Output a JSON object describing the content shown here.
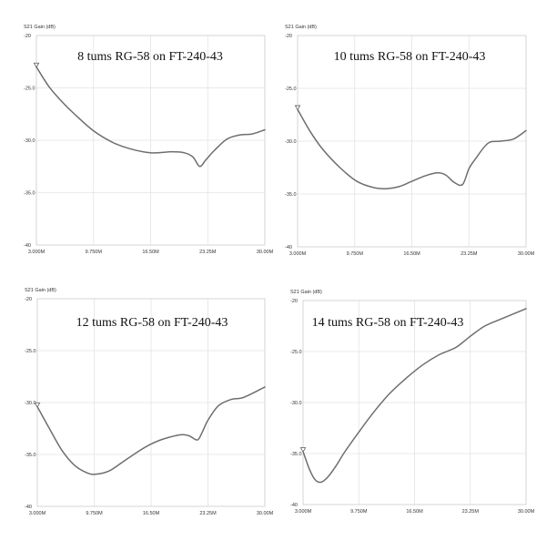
{
  "chart_data": [
    {
      "type": "line",
      "title": "8 tums RG-58 on FT-240-43",
      "ylabel": "S21 Gain (dB)",
      "yticks": [
        "-20",
        "-25.0",
        "-30.0",
        "-35.0",
        "-40"
      ],
      "xticks": [
        "3.000M",
        "9.750M",
        "16.50M",
        "23.25M",
        "30.00M"
      ],
      "xlim": [
        3.0,
        30.0
      ],
      "ylim": [
        -40,
        -20
      ],
      "x_unit": "MHz",
      "series": [
        {
          "color": "#6e6e6e",
          "x": [
            3.0,
            4.5,
            6.0,
            7.5,
            9.75,
            12.0,
            14.0,
            16.5,
            19.0,
            20.5,
            21.5,
            22.3,
            23.0,
            24.0,
            25.5,
            27.0,
            28.5,
            30.0
          ],
          "y": [
            -23.0,
            -24.9,
            -26.3,
            -27.5,
            -29.1,
            -30.2,
            -30.8,
            -31.2,
            -31.1,
            -31.2,
            -31.6,
            -32.5,
            -31.9,
            -31.0,
            -29.9,
            -29.5,
            -29.4,
            -29.0
          ]
        }
      ]
    },
    {
      "type": "line",
      "title": "10 tums RG-58 on FT-240-43",
      "ylabel": "S21 Gain (dB)",
      "yticks": [
        "-20",
        "-25.0",
        "-30.0",
        "-35.0",
        "-40"
      ],
      "xticks": [
        "3.000M",
        "9.750M",
        "16.50M",
        "23.25M",
        "30.00M"
      ],
      "xlim": [
        3.0,
        30.0
      ],
      "ylim": [
        -40,
        -20
      ],
      "x_unit": "MHz",
      "series": [
        {
          "color": "#6e6e6e",
          "x": [
            3.0,
            4.5,
            6.0,
            8.0,
            10.0,
            12.0,
            13.5,
            15.0,
            16.5,
            18.0,
            19.5,
            20.5,
            21.5,
            22.5,
            23.25,
            24.0,
            25.5,
            27.0,
            28.5,
            30.0
          ],
          "y": [
            -27.0,
            -29.1,
            -30.8,
            -32.5,
            -33.8,
            -34.4,
            -34.5,
            -34.3,
            -33.8,
            -33.3,
            -33.0,
            -33.2,
            -33.9,
            -34.1,
            -32.6,
            -31.7,
            -30.2,
            -30.0,
            -29.8,
            -29.0
          ]
        }
      ]
    },
    {
      "type": "line",
      "title": "12 tums RG-58 on FT-240-43",
      "ylabel": "S21 Gain (dB)",
      "yticks": [
        "-20",
        "-25.0",
        "-30.0",
        "-35.0",
        "-40"
      ],
      "xticks": [
        "3.000M",
        "9.750M",
        "16.50M",
        "23.25M",
        "30.00M"
      ],
      "xlim": [
        3.0,
        30.0
      ],
      "ylim": [
        -40,
        -20
      ],
      "x_unit": "MHz",
      "series": [
        {
          "color": "#6e6e6e",
          "x": [
            3.0,
            4.5,
            6.0,
            7.5,
            9.0,
            10.0,
            11.5,
            13.0,
            15.0,
            16.5,
            18.0,
            20.0,
            21.0,
            22.0,
            22.6,
            23.25,
            24.5,
            26.0,
            27.5,
            30.0
          ],
          "y": [
            -30.4,
            -32.6,
            -34.7,
            -36.1,
            -36.8,
            -36.9,
            -36.6,
            -35.8,
            -34.7,
            -34.0,
            -33.5,
            -33.1,
            -33.2,
            -33.6,
            -32.8,
            -31.7,
            -30.3,
            -29.7,
            -29.5,
            -28.5
          ]
        }
      ]
    },
    {
      "type": "line",
      "title": "14 tums RG-58 on FT-240-43",
      "ylabel": "S21 Gain (dB)",
      "yticks": [
        "-20",
        "-25.0",
        "-30.0",
        "-35.0",
        "-40"
      ],
      "xticks": [
        "3.000M",
        "9.750M",
        "16.50M",
        "23.25M",
        "30.00M"
      ],
      "xlim": [
        3.0,
        30.0
      ],
      "ylim": [
        -40,
        -20
      ],
      "x_unit": "MHz",
      "series": [
        {
          "color": "#6e6e6e",
          "x": [
            3.0,
            3.8,
            4.5,
            5.2,
            6.0,
            7.0,
            8.0,
            9.75,
            11.5,
            13.5,
            15.5,
            17.5,
            19.5,
            21.5,
            23.25,
            25.0,
            27.0,
            30.0
          ],
          "y": [
            -34.8,
            -36.6,
            -37.6,
            -37.8,
            -37.3,
            -36.2,
            -34.9,
            -32.9,
            -31.0,
            -29.1,
            -27.6,
            -26.3,
            -25.3,
            -24.6,
            -23.5,
            -22.5,
            -21.8,
            -20.8
          ]
        }
      ]
    }
  ]
}
